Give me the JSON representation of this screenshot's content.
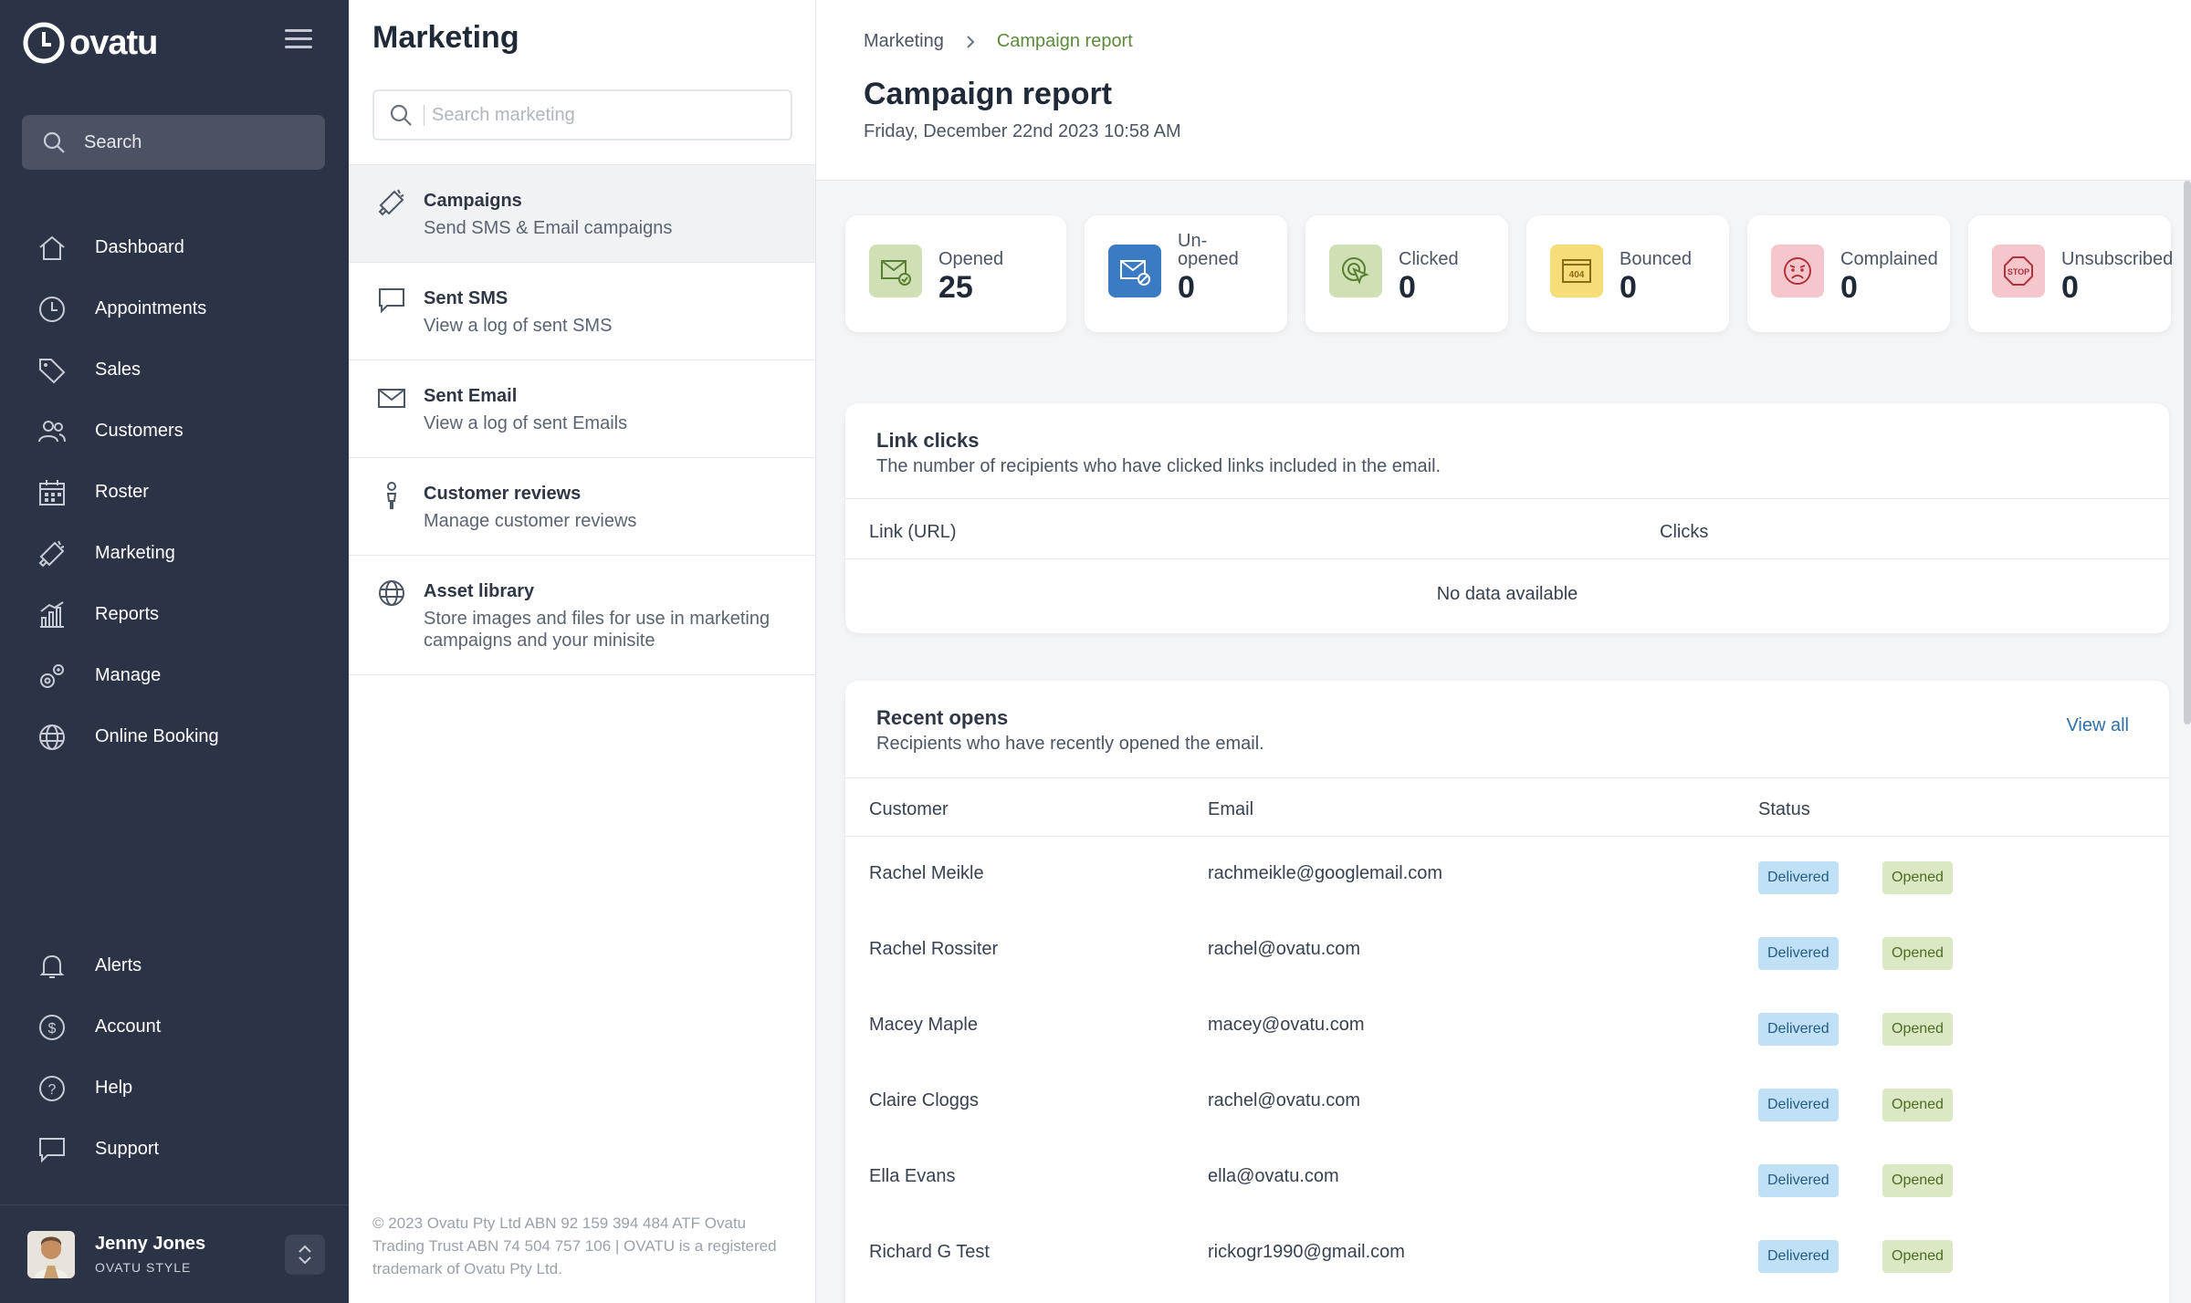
{
  "app": {
    "brand": "ovatu"
  },
  "sidebar": {
    "search_label": "Search",
    "items": [
      {
        "label": "Dashboard",
        "icon": "home-icon"
      },
      {
        "label": "Appointments",
        "icon": "clock-icon"
      },
      {
        "label": "Sales",
        "icon": "tag-icon"
      },
      {
        "label": "Customers",
        "icon": "users-icon"
      },
      {
        "label": "Roster",
        "icon": "calendar-icon"
      },
      {
        "label": "Marketing",
        "icon": "megaphone-icon"
      },
      {
        "label": "Reports",
        "icon": "bar-chart-icon"
      },
      {
        "label": "Manage",
        "icon": "gears-icon"
      },
      {
        "label": "Online Booking",
        "icon": "globe-icon"
      }
    ],
    "bottom_items": [
      {
        "label": "Alerts",
        "icon": "bell-icon"
      },
      {
        "label": "Account",
        "icon": "dollar-icon"
      },
      {
        "label": "Help",
        "icon": "help-icon"
      },
      {
        "label": "Support",
        "icon": "chat-icon"
      }
    ],
    "user": {
      "name": "Jenny Jones",
      "org": "OVATU STYLE"
    }
  },
  "panel": {
    "title": "Marketing",
    "search_placeholder": "Search marketing",
    "items": [
      {
        "title": "Campaigns",
        "subtitle": "Send SMS & Email campaigns",
        "icon": "megaphone-icon",
        "active": true
      },
      {
        "title": "Sent SMS",
        "subtitle": "View a log of sent SMS",
        "icon": "chat-icon"
      },
      {
        "title": "Sent Email",
        "subtitle": "View a log of sent Emails",
        "icon": "mail-icon"
      },
      {
        "title": "Customer reviews",
        "subtitle": "Manage customer reviews",
        "icon": "person-icon"
      },
      {
        "title": "Asset library",
        "subtitle": "Store images and files for use in marketing campaigns and your minisite",
        "icon": "globe-icon"
      }
    ],
    "footer": "© 2023 Ovatu Pty Ltd ABN 92 159 394 484 ATF Ovatu Trading Trust ABN 74 504 757 106 | OVATU is a registered trademark of Ovatu Pty Ltd."
  },
  "main": {
    "breadcrumb": {
      "root": "Marketing",
      "current": "Campaign report"
    },
    "title": "Campaign report",
    "date": "Friday, December 22nd 2023 10:58 AM",
    "stats": [
      {
        "label": "Opened",
        "value": "25",
        "color": "#cfe0b4",
        "icon": "mail-check-icon"
      },
      {
        "label": "Un-\nopened",
        "value": "0",
        "color": "#3b7bc4",
        "icon": "mail-blocked-icon"
      },
      {
        "label": "Clicked",
        "value": "0",
        "color": "#cfe0b4",
        "icon": "click-icon"
      },
      {
        "label": "Bounced",
        "value": "0",
        "color": "#f7dc7a",
        "icon": "error-404-icon"
      },
      {
        "label": "Complained",
        "value": "0",
        "color": "#f5c6cb",
        "icon": "angry-face-icon"
      },
      {
        "label": "Unsubscribed",
        "value": "0",
        "color": "#f5c6cb",
        "icon": "stop-sign-icon"
      }
    ],
    "link_clicks": {
      "title": "Link clicks",
      "subtitle": "The number of recipients who have clicked links included in the email.",
      "columns": [
        "Link (URL)",
        "Clicks"
      ],
      "empty": "No data available"
    },
    "recent_opens": {
      "title": "Recent opens",
      "subtitle": "Recipients who have recently opened the email.",
      "view_all": "View all",
      "columns": [
        "Customer",
        "Email",
        "Status"
      ],
      "rows": [
        {
          "customer": "Rachel Meikle",
          "email": "rachmeikle@googlemail.com",
          "badges": [
            "Delivered",
            "Opened"
          ]
        },
        {
          "customer": "Rachel Rossiter",
          "email": "rachel@ovatu.com",
          "badges": [
            "Delivered",
            "Opened"
          ]
        },
        {
          "customer": "Macey Maple",
          "email": "macey@ovatu.com",
          "badges": [
            "Delivered",
            "Opened"
          ]
        },
        {
          "customer": "Claire Cloggs",
          "email": "rachel@ovatu.com",
          "badges": [
            "Delivered",
            "Opened"
          ]
        },
        {
          "customer": "Ella Evans",
          "email": "ella@ovatu.com",
          "badges": [
            "Delivered",
            "Opened"
          ]
        },
        {
          "customer": "Richard G Test",
          "email": "rickogr1990@gmail.com",
          "badges": [
            "Delivered",
            "Opened"
          ]
        }
      ]
    }
  }
}
